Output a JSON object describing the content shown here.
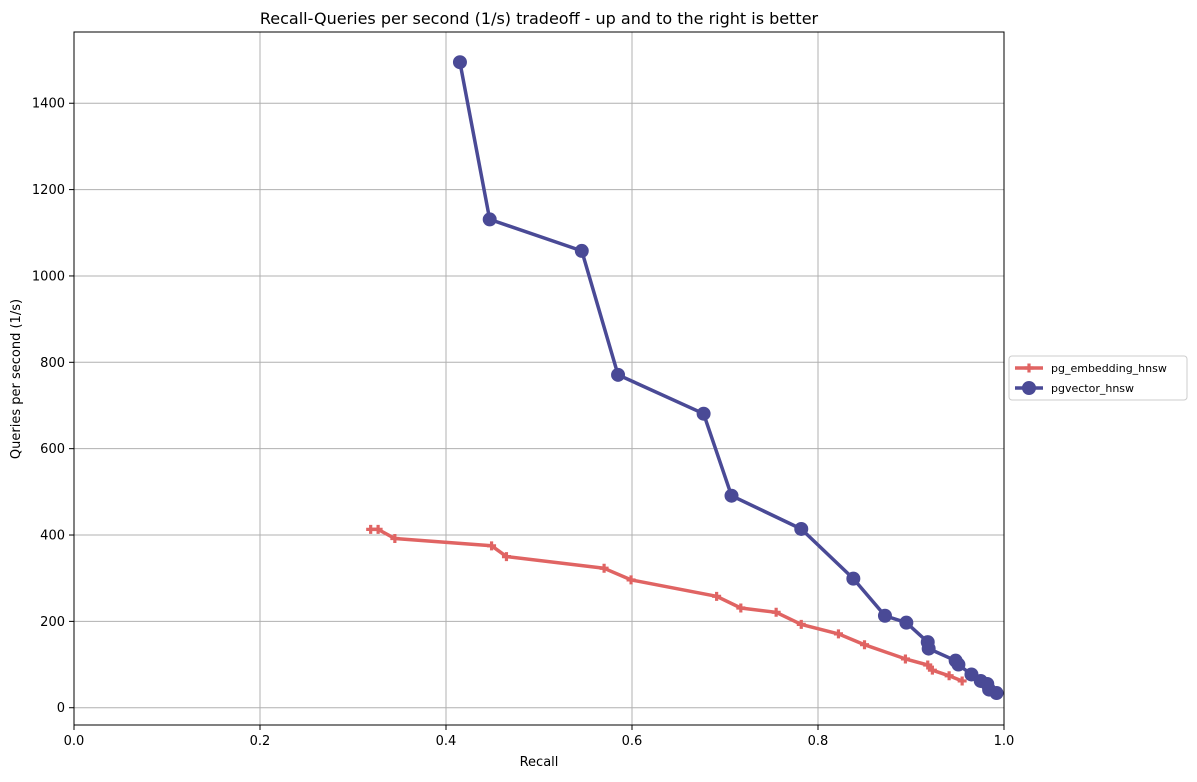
{
  "chart_data": {
    "type": "line",
    "title": "Recall-Queries per second (1/s) tradeoff - up and to the right is better",
    "xlabel": "Recall",
    "ylabel": "Queries per second (1/s)",
    "xlim": [
      0.0,
      1.0
    ],
    "ylim": [
      -40,
      1565
    ],
    "xticks": [
      0.0,
      0.2,
      0.4,
      0.6,
      0.8,
      1.0
    ],
    "xtick_labels": [
      "0.0",
      "0.2",
      "0.4",
      "0.6",
      "0.8",
      "1.0"
    ],
    "yticks": [
      0,
      200,
      400,
      600,
      800,
      1000,
      1200,
      1400
    ],
    "ytick_labels": [
      "0",
      "200",
      "400",
      "600",
      "800",
      "1000",
      "1200",
      "1400"
    ],
    "grid": true,
    "legend_position": "outside-right",
    "series": [
      {
        "name": "pg_embedding_hnsw",
        "color": "#e06463",
        "marker": "plus",
        "x": [
          0.319,
          0.327,
          0.345,
          0.449,
          0.465,
          0.57,
          0.599,
          0.691,
          0.717,
          0.755,
          0.782,
          0.822,
          0.85,
          0.894,
          0.918,
          0.923,
          0.941,
          0.955
        ],
        "y": [
          413,
          413,
          392,
          375,
          350,
          323,
          296,
          258,
          231,
          221,
          193,
          171,
          146,
          113,
          99,
          87,
          74,
          62
        ]
      },
      {
        "name": "pgvector_hnsw",
        "color": "#4a4a96",
        "marker": "circle",
        "x": [
          0.415,
          0.447,
          0.546,
          0.585,
          0.677,
          0.707,
          0.782,
          0.838,
          0.872,
          0.895,
          0.918,
          0.919,
          0.948,
          0.951,
          0.965,
          0.975,
          0.982,
          0.984,
          0.992
        ],
        "y": [
          1495,
          1131,
          1058,
          771,
          681,
          491,
          414,
          299,
          213,
          197,
          152,
          137,
          109,
          100,
          77,
          62,
          55,
          42,
          34
        ]
      }
    ]
  }
}
